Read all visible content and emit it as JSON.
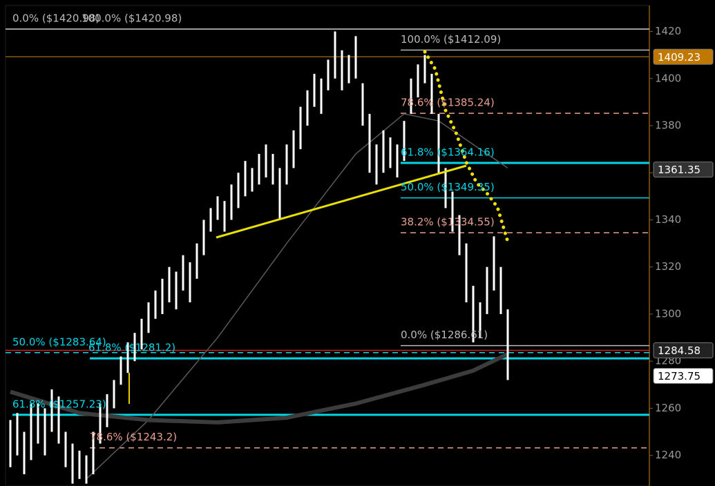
{
  "chart_data": {
    "type": "ohlc",
    "ylim": [
      1227,
      1431
    ],
    "yticks": [
      1240,
      1260,
      1280,
      1300,
      1320,
      1340,
      1360,
      1380,
      1400,
      1420
    ],
    "bar_color": "#ffffff",
    "low": [
      1235,
      1240,
      1232,
      1238,
      1245,
      1240,
      1250,
      1245,
      1235,
      1228,
      1230,
      1228,
      1232,
      1245,
      1252,
      1260,
      1270,
      1275,
      1280,
      1285,
      1292,
      1298,
      1300,
      1305,
      1302,
      1310,
      1305,
      1315,
      1325,
      1335,
      1340,
      1335,
      1340,
      1345,
      1350,
      1352,
      1355,
      1358,
      1355,
      1340,
      1355,
      1362,
      1370,
      1380,
      1388,
      1385,
      1395,
      1400,
      1395,
      1398,
      1400,
      1380,
      1360,
      1355,
      1360,
      1362,
      1358,
      1365,
      1385,
      1392,
      1398,
      1385,
      1360,
      1345,
      1335,
      1325,
      1305,
      1288,
      1290,
      1300,
      1310,
      1300,
      1272
    ],
    "high": [
      1255,
      1258,
      1250,
      1262,
      1262,
      1260,
      1268,
      1265,
      1250,
      1245,
      1242,
      1240,
      1250,
      1262,
      1266,
      1272,
      1282,
      1288,
      1292,
      1298,
      1305,
      1310,
      1315,
      1320,
      1318,
      1325,
      1322,
      1330,
      1340,
      1345,
      1350,
      1348,
      1355,
      1360,
      1365,
      1362,
      1368,
      1372,
      1368,
      1362,
      1372,
      1378,
      1388,
      1395,
      1402,
      1400,
      1408,
      1420,
      1412,
      1410,
      1418,
      1398,
      1385,
      1372,
      1378,
      1375,
      1372,
      1382,
      1400,
      1406,
      1410,
      1402,
      1385,
      1362,
      1352,
      1342,
      1330,
      1312,
      1305,
      1320,
      1333,
      1320,
      1302
    ],
    "moving_averages": [
      {
        "color": "#5a5a5a",
        "width": 1.5,
        "x": [
          11,
          20,
          30,
          40,
          50,
          57,
          62,
          67,
          72
        ],
        "values": [
          1230,
          1255,
          1290,
          1330,
          1368,
          1385,
          1382,
          1372,
          1362
        ]
      },
      {
        "color": "#3c3c3c",
        "width": 6,
        "x": [
          0,
          10,
          20,
          30,
          40,
          50,
          60,
          67,
          72
        ],
        "values": [
          1267,
          1258,
          1255,
          1254,
          1256,
          1262,
          1270,
          1276,
          1283
        ]
      }
    ],
    "fib_levels": [
      {
        "label": "0.0% ($1420.98)",
        "value": 1420.98,
        "color": "#bbbbbb",
        "dashed": false
      },
      {
        "label": "100.0% ($1420.98)",
        "value": 1420.98,
        "color": "#bbbbbb",
        "dashed": false
      },
      {
        "label": "100.0% ($1412.09)",
        "value": 1412.09,
        "color": "#bbbbbb",
        "dashed": false
      },
      {
        "label": "78.6% ($1385.24)",
        "value": 1385.24,
        "color": "#e8a090",
        "dashed": true
      },
      {
        "label": "61.8% ($1364.16)",
        "value": 1364.16,
        "color": "#00d8e8",
        "dashed": false
      },
      {
        "label": "50.0% ($1349.35)",
        "value": 1349.35,
        "color": "#00d8e8",
        "dashed": false
      },
      {
        "label": "38.2% ($1334.55)",
        "value": 1334.55,
        "color": "#e8a090",
        "dashed": true
      },
      {
        "label": "0.0% ($1286.61)",
        "value": 1286.61,
        "color": "#bbbbbb",
        "dashed": false
      },
      {
        "label": "50.0% ($1283.64)",
        "value": 1283.64,
        "color": "#00d8e8",
        "dashed": true
      },
      {
        "label": "61.8% ($1281.2)",
        "value": 1281.2,
        "color": "#00d8e8",
        "dashed": false
      },
      {
        "label": "61.8% ($1257.23)",
        "value": 1257.23,
        "color": "#00d8e8",
        "dashed": false
      },
      {
        "label": "78.6% ($1243.2)",
        "value": 1243.2,
        "color": "#e8a090",
        "dashed": true
      }
    ],
    "price_tags": [
      {
        "value": 1409.23,
        "fill": "#c07800",
        "text_color": "#ffffff",
        "line_color": "#8a5a10"
      },
      {
        "value": 1361.35,
        "fill": "#333333",
        "text_color": "#ffffff",
        "line_color": null
      },
      {
        "value": 1284.58,
        "fill": "#222222",
        "text_color": "#ffffff",
        "line_color": "#d02020"
      },
      {
        "value": 1273.75,
        "fill": "#ffffff",
        "text_color": "#000000",
        "line_color": null
      }
    ]
  }
}
